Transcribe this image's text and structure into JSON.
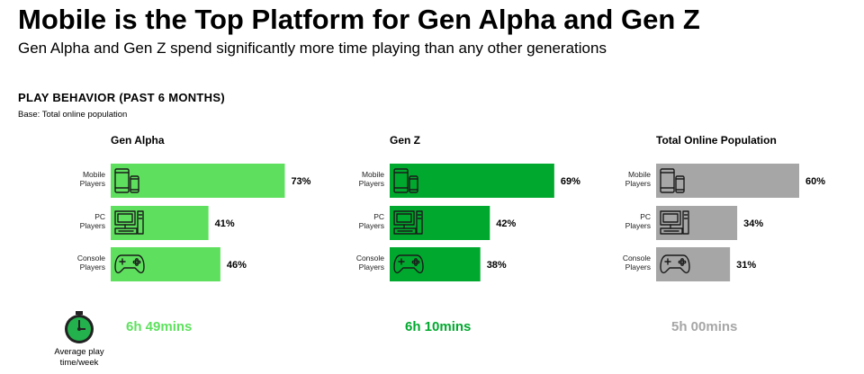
{
  "title": "Mobile is the Top Platform for Gen Alpha and Gen Z",
  "subtitle": "Gen Alpha and Gen Z spend significantly more time playing than any other generations",
  "section_title": "PLAY BEHAVIOR (PAST 6 MONTHS)",
  "base_note": "Base: Total online population",
  "avg_label": "Average play time/week",
  "colors": {
    "gen_alpha": "#5ee05e",
    "gen_z": "#00a92e",
    "total": "#a6a6a6"
  },
  "chart_data": {
    "type": "bar",
    "orientation": "horizontal",
    "categories": [
      "Mobile Players",
      "PC Players",
      "Console Players"
    ],
    "category_icons": [
      "mobile-devices-icon",
      "pc-icon",
      "gamepad-icon"
    ],
    "unit": "%",
    "series": [
      {
        "name": "Gen Alpha",
        "values": [
          73,
          41,
          46
        ],
        "play_time": "6h 49mins"
      },
      {
        "name": "Gen Z",
        "values": [
          69,
          42,
          38
        ],
        "play_time": "6h 10mins"
      },
      {
        "name": "Total Online Population",
        "values": [
          60,
          34,
          31
        ],
        "play_time": "5h 00mins"
      }
    ]
  }
}
